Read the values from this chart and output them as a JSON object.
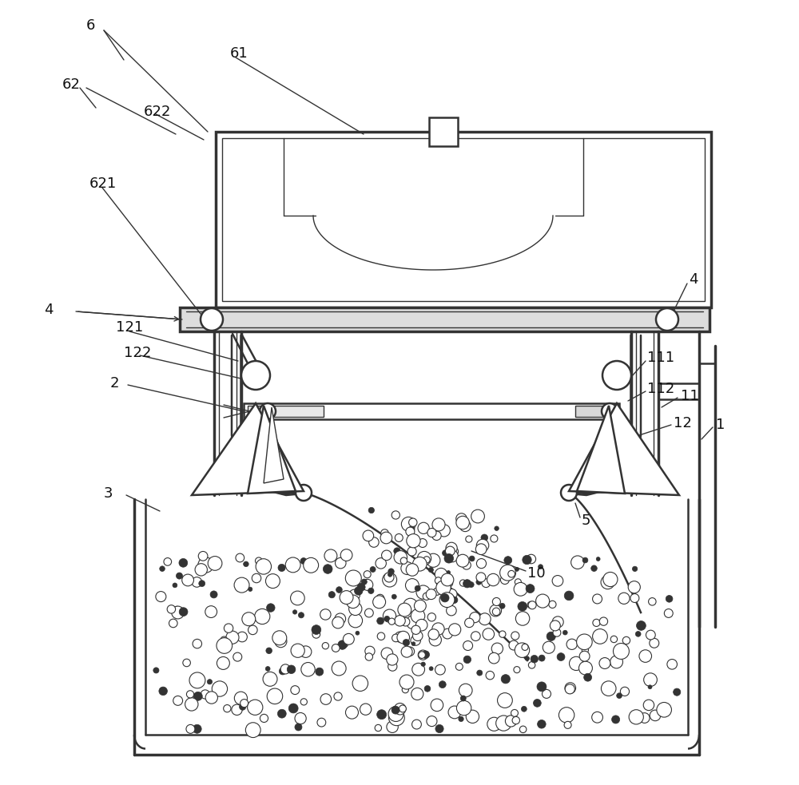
{
  "bg_color": "#ffffff",
  "line_color": "#333333",
  "lw_main": 1.8,
  "lw_thin": 1.0,
  "lw_thick": 2.5,
  "fig_w": 10.0,
  "fig_h": 9.83,
  "dpi": 100,
  "font_size": 13
}
